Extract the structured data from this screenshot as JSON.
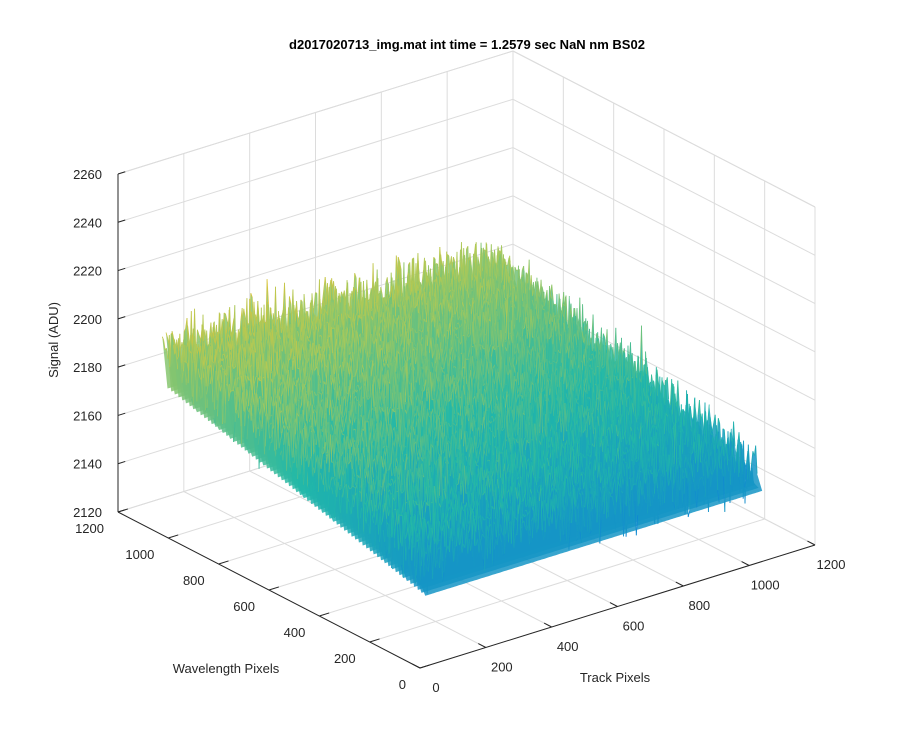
{
  "chart_data": {
    "type": "surface",
    "title": "d2017020713_img.mat int time = 1.2579 sec  NaN nm BS02",
    "xlabel": "Track Pixels",
    "ylabel": "Wavelength Pixels",
    "zlabel": "Signal (ADU)",
    "xlim": [
      0,
      1200
    ],
    "ylim": [
      0,
      1200
    ],
    "zlim": [
      2120,
      2260
    ],
    "x_ticks": [
      "0",
      "200",
      "400",
      "600",
      "800",
      "1000",
      "1200"
    ],
    "y_ticks": [
      "0",
      "200",
      "400",
      "600",
      "800",
      "1000",
      "1200"
    ],
    "z_ticks": [
      "2120",
      "2140",
      "2160",
      "2180",
      "2200",
      "2220",
      "2240",
      "2260"
    ],
    "grid": true,
    "box": true,
    "colormap": "parula",
    "colors": {
      "low": "#0f84d5",
      "mid": "#22b8a8",
      "midhigh": "#a9c95a",
      "high": "#f2c22e"
    },
    "surface_summary": {
      "x_range": [
        0,
        1024
      ],
      "y_range": [
        0,
        1024
      ],
      "z_mean_near_wavelength_1000": 2195,
      "z_mean_near_wavelength_0": 2165,
      "z_min": 2130,
      "z_max": 2245
    }
  }
}
